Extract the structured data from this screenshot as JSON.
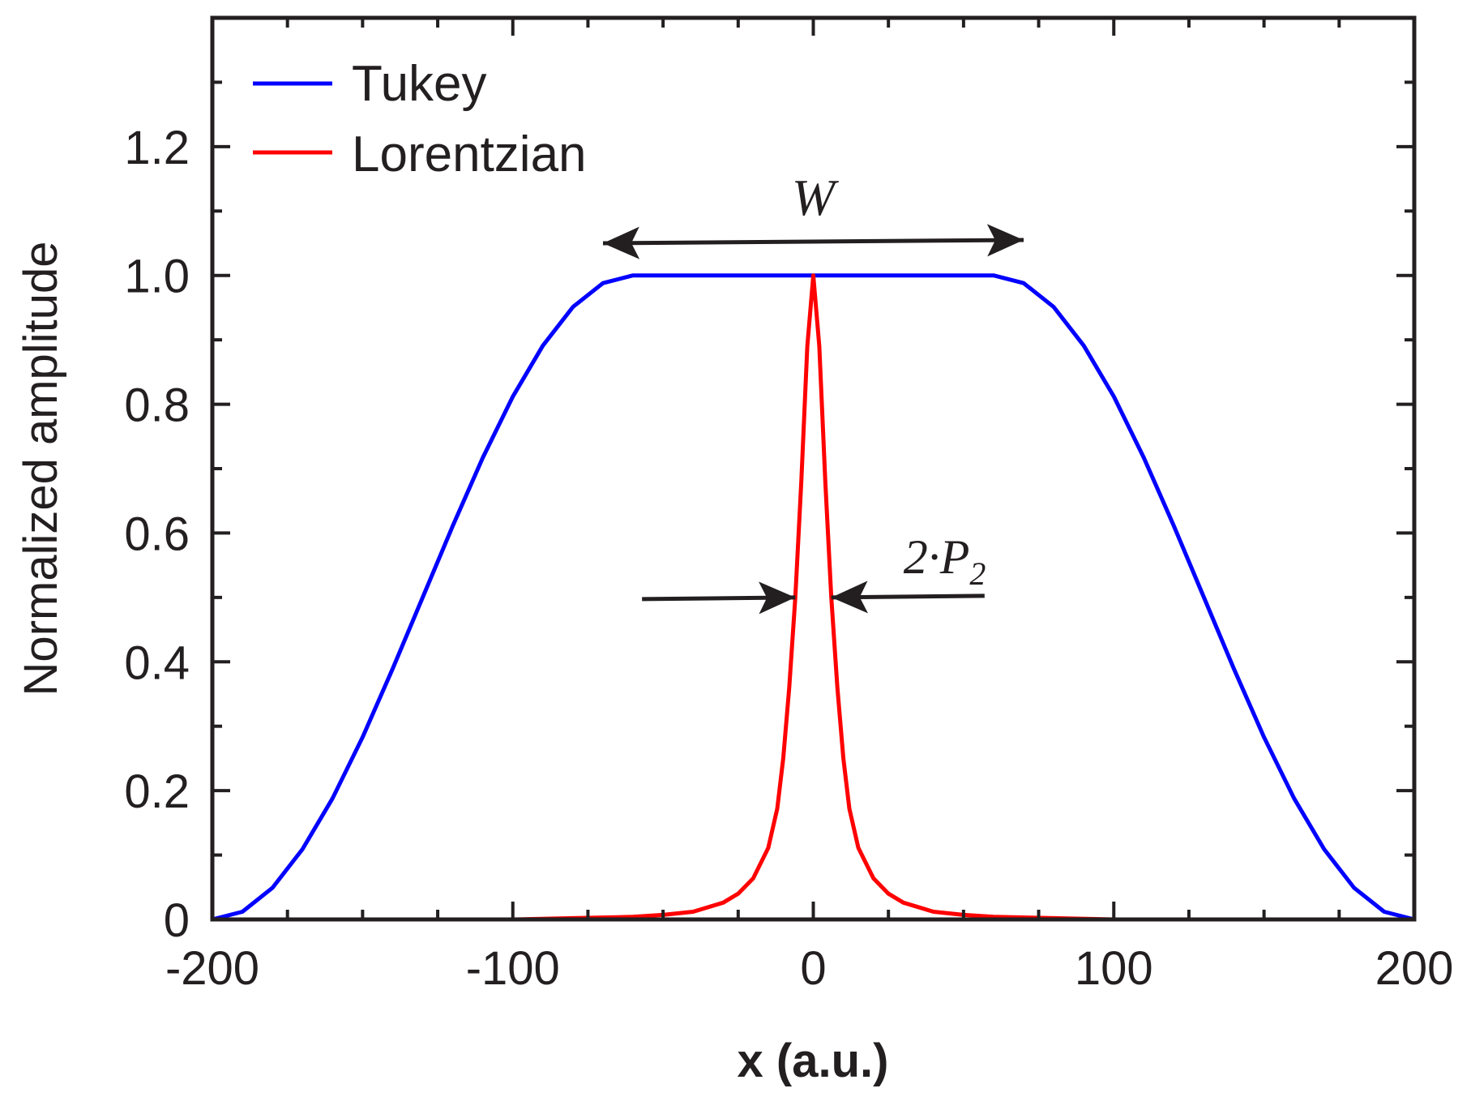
{
  "chart_data": {
    "type": "line",
    "title": "",
    "xlabel": "x (a.u.)",
    "ylabel": "Normalized amplitude",
    "xlim": [
      -200,
      200
    ],
    "ylim": [
      0,
      1.4
    ],
    "x_ticks": [
      -200,
      -100,
      0,
      100,
      200
    ],
    "x_tick_labels": [
      "-200",
      "-100",
      "0",
      "100",
      "200"
    ],
    "y_ticks": [
      0,
      0.2,
      0.4,
      0.6,
      0.8,
      1.0,
      1.2
    ],
    "y_tick_labels": [
      "0",
      "0.2",
      "0.4",
      "0.6",
      "0.8",
      "1.0",
      "1.2"
    ],
    "x_minor_step": 25,
    "y_minor_step": 0.1,
    "grid": false,
    "legend_position": "top-left",
    "series": [
      {
        "name": "Tukey",
        "color": "#0000ff",
        "x": [
          -200,
          -190,
          -180,
          -170,
          -160,
          -150,
          -140,
          -130,
          -120,
          -110,
          -100,
          -90,
          -80,
          -70,
          -60,
          -40,
          -20,
          0,
          20,
          40,
          60,
          70,
          80,
          90,
          100,
          110,
          120,
          130,
          140,
          150,
          160,
          170,
          180,
          190,
          200
        ],
        "values": [
          0.0,
          0.012,
          0.049,
          0.109,
          0.188,
          0.283,
          0.389,
          0.5,
          0.611,
          0.717,
          0.812,
          0.891,
          0.951,
          0.988,
          1.0,
          1.0,
          1.0,
          1.0,
          1.0,
          1.0,
          1.0,
          0.988,
          0.951,
          0.891,
          0.812,
          0.717,
          0.611,
          0.5,
          0.389,
          0.283,
          0.188,
          0.109,
          0.049,
          0.012,
          0.0
        ]
      },
      {
        "name": "Lorentzian",
        "color": "#ff0000",
        "x": [
          -200,
          -150,
          -100,
          -80,
          -60,
          -50,
          -40,
          -30,
          -25,
          -20,
          -15,
          -12,
          -10,
          -8,
          -6,
          -4,
          -2,
          0,
          2,
          4,
          6,
          8,
          10,
          12,
          15,
          20,
          25,
          30,
          40,
          50,
          60,
          80,
          100,
          150,
          200
        ],
        "values": [
          0.0,
          0.0,
          0.0,
          0.002,
          0.004,
          0.007,
          0.012,
          0.026,
          0.04,
          0.064,
          0.111,
          0.172,
          0.25,
          0.36,
          0.5,
          0.68,
          0.89,
          1.0,
          0.89,
          0.68,
          0.5,
          0.36,
          0.25,
          0.172,
          0.111,
          0.064,
          0.04,
          0.026,
          0.012,
          0.007,
          0.004,
          0.002,
          0.0,
          0.0,
          0.0
        ]
      }
    ],
    "annotations": {
      "width_label": "W",
      "width_arrow_x": [
        -70,
        70
      ],
      "width_arrow_y": 1.05,
      "fwhm_label_prefix": "2·P",
      "fwhm_label_subscript": "2",
      "fwhm_arrow_y": 0.5,
      "fwhm_left_arrow_x": [
        -57,
        -6
      ],
      "fwhm_right_arrow_x": [
        57,
        6
      ]
    }
  }
}
